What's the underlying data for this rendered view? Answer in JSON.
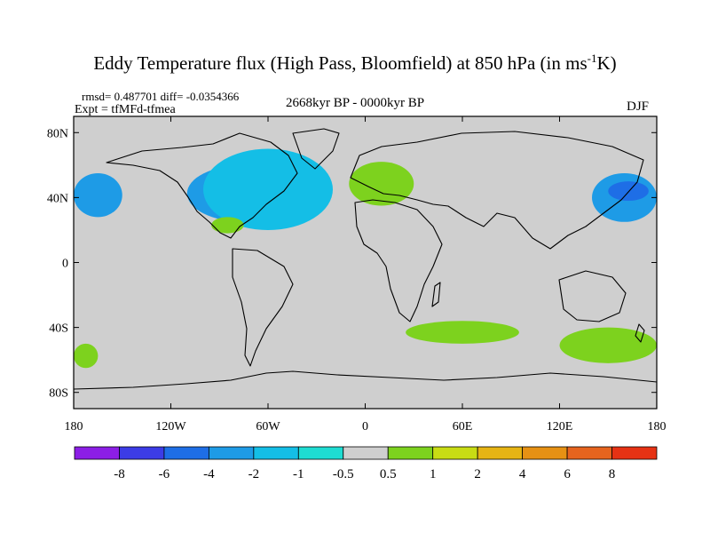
{
  "chart_data": {
    "type": "heatmap",
    "title_main": "Eddy Temperature flux (High Pass, Bloomfield) at 850 hPa (in ms",
    "title_sup": "-1",
    "title_end": "K)",
    "stats": "rmsd= 0.487701 diff= -0.0354366",
    "expt": "Expt = tfMFd-tfmea",
    "period": "2668kyr BP - 0000kyr BP",
    "season": "DJF",
    "xlim": [
      -180,
      180
    ],
    "ylim": [
      -90,
      90
    ],
    "x_ticks": [
      {
        "value": -180,
        "label": "180"
      },
      {
        "value": -120,
        "label": "120W"
      },
      {
        "value": -60,
        "label": "60W"
      },
      {
        "value": 0,
        "label": "0"
      },
      {
        "value": 60,
        "label": "60E"
      },
      {
        "value": 120,
        "label": "120E"
      },
      {
        "value": 180,
        "label": "180"
      }
    ],
    "y_ticks": [
      {
        "value": 80,
        "label": "80N"
      },
      {
        "value": 40,
        "label": "40N"
      },
      {
        "value": 0,
        "label": "0"
      },
      {
        "value": -40,
        "label": "40S"
      },
      {
        "value": -80,
        "label": "80S"
      }
    ],
    "colorbar": {
      "colors": [
        "#8c1ee6",
        "#3c3ce6",
        "#1e6ee6",
        "#1e9be6",
        "#14bee6",
        "#1edcd2",
        "#cfcfcf",
        "#7dd21e",
        "#c8dc14",
        "#e6b414",
        "#e69114",
        "#e6641e",
        "#e63214"
      ],
      "labels": [
        "-8",
        "-6",
        "-4",
        "-2",
        "-1",
        "-0.5",
        "0.5",
        "1",
        "2",
        "4",
        "6",
        "8"
      ]
    },
    "regions": [
      {
        "name": "north-pacific-west",
        "level": -2,
        "color": "#1e9be6",
        "lon": [
          140,
          180
        ],
        "lat": [
          25,
          55
        ]
      },
      {
        "name": "north-pacific-west-core",
        "level": -4,
        "color": "#1e6ee6",
        "lon": [
          150,
          175
        ],
        "lat": [
          38,
          50
        ]
      },
      {
        "name": "north-pacific-east",
        "level": -2,
        "color": "#1e9be6",
        "lon": [
          -180,
          -150
        ],
        "lat": [
          28,
          55
        ]
      },
      {
        "name": "north-america",
        "level": -2,
        "color": "#1e9be6",
        "lon": [
          -110,
          -40
        ],
        "lat": [
          25,
          60
        ]
      },
      {
        "name": "north-atlantic",
        "level": -1,
        "color": "#14bee6",
        "lon": [
          -100,
          -20
        ],
        "lat": [
          20,
          70
        ]
      },
      {
        "name": "europe",
        "level": 1,
        "color": "#7dd21e",
        "lon": [
          -10,
          30
        ],
        "lat": [
          35,
          62
        ]
      },
      {
        "name": "gulf-of-mexico",
        "level": 1,
        "color": "#7dd21e",
        "lon": [
          -95,
          -75
        ],
        "lat": [
          18,
          28
        ]
      },
      {
        "name": "southern-indian-ocean",
        "level": 1,
        "color": "#7dd21e",
        "lon": [
          25,
          95
        ],
        "lat": [
          -50,
          -36
        ]
      },
      {
        "name": "southern-pacific-east",
        "level": 1,
        "color": "#7dd21e",
        "lon": [
          -180,
          -165
        ],
        "lat": [
          -65,
          -50
        ]
      },
      {
        "name": "southern-pacific-west",
        "level": 1,
        "color": "#7dd21e",
        "lon": [
          120,
          180
        ],
        "lat": [
          -62,
          -40
        ]
      }
    ]
  }
}
